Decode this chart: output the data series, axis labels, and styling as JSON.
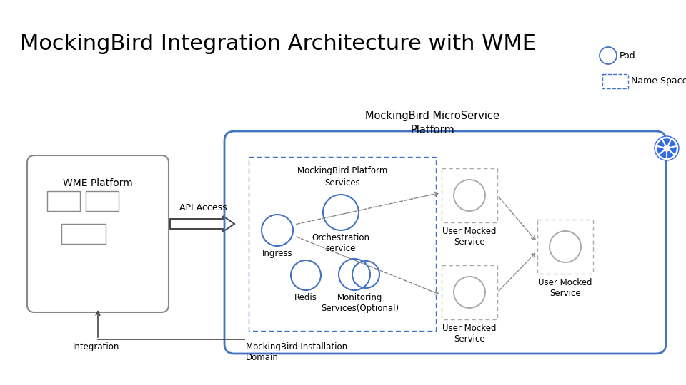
{
  "title": "MockingBird Integration Architecture with WME",
  "title_fontsize": 22,
  "bg_color": "#ffffff",
  "blue_color": "#4472C4",
  "gray_color": "#888888",
  "text_color": "#000000",
  "legend_pod_label": "Pod",
  "legend_ns_label": "Name Space",
  "wme_label": "WME Platform",
  "mb_platform_label": "MockingBird MicroService\nPlatform",
  "mb_services_label": "MockingBird Platform\nServices",
  "mb_install_label": "MockingBird Installation\nDomain",
  "api_access_label": "API Access",
  "integration_label": "Integration",
  "ingress_label": "Ingress",
  "orchestration_label": "Orchestration\nservice",
  "redis_label": "Redis",
  "monitoring_label": "Monitoring\nServices(Optional)",
  "user_mocked_label": "User Mocked\nService"
}
